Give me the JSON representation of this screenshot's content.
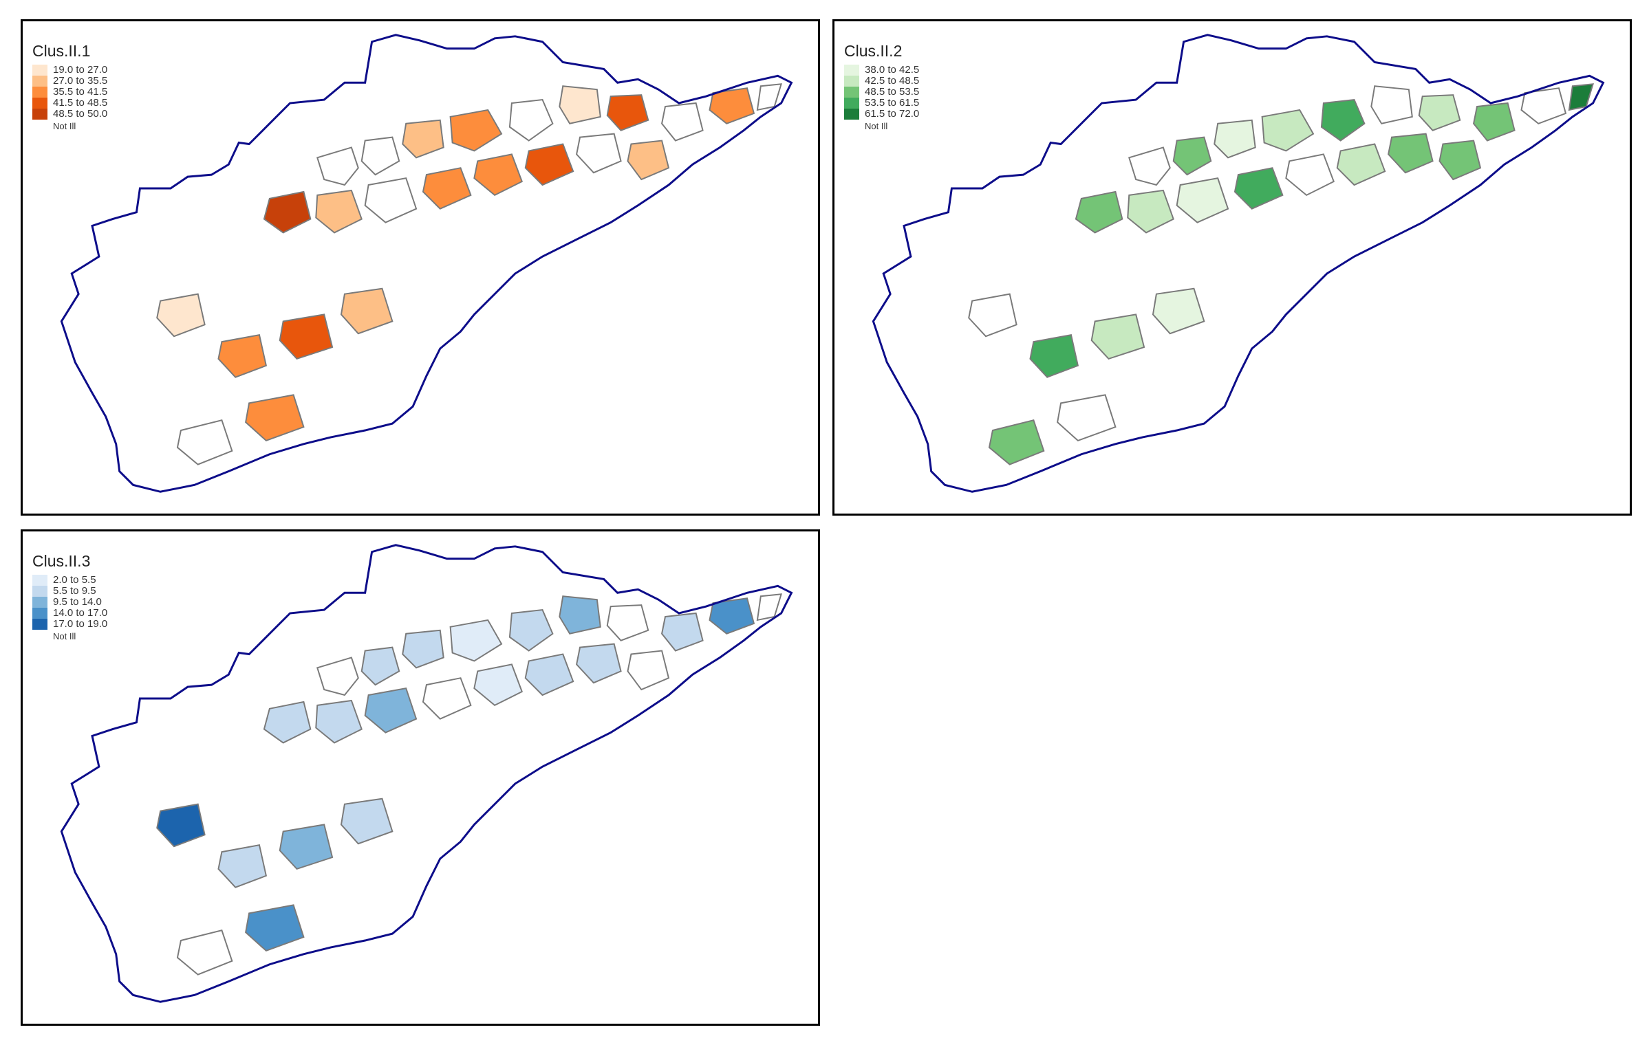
{
  "panels": [
    {
      "title": "Clus.II.1",
      "colors": [
        "#fee6ce",
        "#fdbf86",
        "#fd8d3c",
        "#e8560c",
        "#c7410a"
      ],
      "labels": [
        "19.0 to 27.0",
        "27.0 to 35.5",
        "35.5 to 41.5",
        "41.5 to 48.5",
        "48.5 to 50.0"
      ],
      "na_label": "Not Ill"
    },
    {
      "title": "Clus.II.2",
      "colors": [
        "#e5f5e0",
        "#c7e9c0",
        "#74c476",
        "#41ab5d",
        "#1b7d3a"
      ],
      "labels": [
        "38.0 to 42.5",
        "42.5 to 48.5",
        "48.5 to 53.5",
        "53.5 to 61.5",
        "61.5 to 72.0"
      ],
      "na_label": "Not Ill"
    },
    {
      "title": "Clus.II.3",
      "colors": [
        "#e0ecf8",
        "#c3d9ee",
        "#7fb4da",
        "#4a91c9",
        "#1c64ad"
      ],
      "labels": [
        "2.0 to 5.5",
        "5.5 to 9.5",
        "9.5 to 14.0",
        "14.0 to 17.0",
        "17.0 to 19.0"
      ],
      "na_label": "Not Ill"
    }
  ],
  "boundary_color": "#0d0d8a",
  "region_border_color": "#7a7a7a",
  "region_values": [
    [
      null,
      null,
      1,
      2,
      null,
      0,
      3,
      null,
      2,
      null,
      4,
      1,
      null,
      2,
      2,
      3,
      null,
      1,
      0,
      2,
      3,
      1,
      null,
      2
    ],
    [
      null,
      2,
      0,
      1,
      3,
      null,
      1,
      2,
      null,
      4,
      2,
      1,
      0,
      3,
      null,
      1,
      2,
      2,
      null,
      3,
      1,
      0,
      2,
      null
    ],
    [
      null,
      1,
      1,
      0,
      1,
      2,
      null,
      1,
      3,
      null,
      1,
      1,
      2,
      null,
      0,
      1,
      1,
      null,
      4,
      1,
      2,
      1,
      null,
      3
    ]
  ]
}
